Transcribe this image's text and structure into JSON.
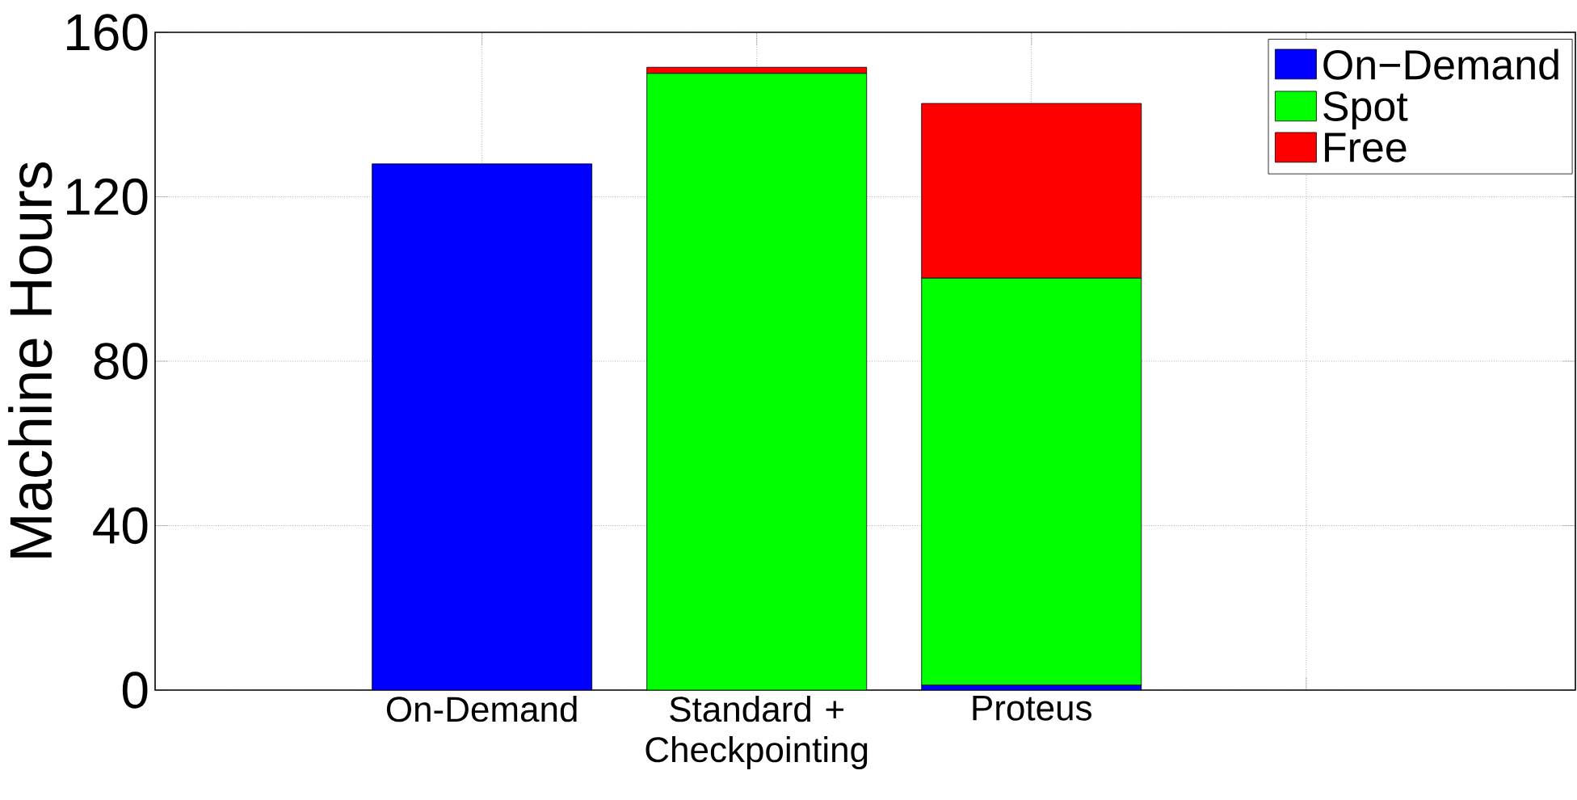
{
  "chart_data": {
    "type": "bar",
    "stacked": true,
    "ylabel": "Machine Hours",
    "categories": [
      "On-Demand",
      "Standard + Checkpointing",
      "Proteus",
      null
    ],
    "series": [
      {
        "name": "On−Demand",
        "color": "#0000ff",
        "values": [
          128,
          0,
          1.2,
          null
        ]
      },
      {
        "name": "Spot",
        "color": "#00ff00",
        "values": [
          0,
          150,
          99,
          null
        ]
      },
      {
        "name": "Free",
        "color": "#ff0000",
        "values": [
          0,
          1.5,
          42.5,
          null
        ]
      }
    ],
    "ylim": [
      0,
      160
    ],
    "yticks": [
      0,
      40,
      80,
      120,
      160
    ],
    "grid": true,
    "legend": "top right"
  }
}
